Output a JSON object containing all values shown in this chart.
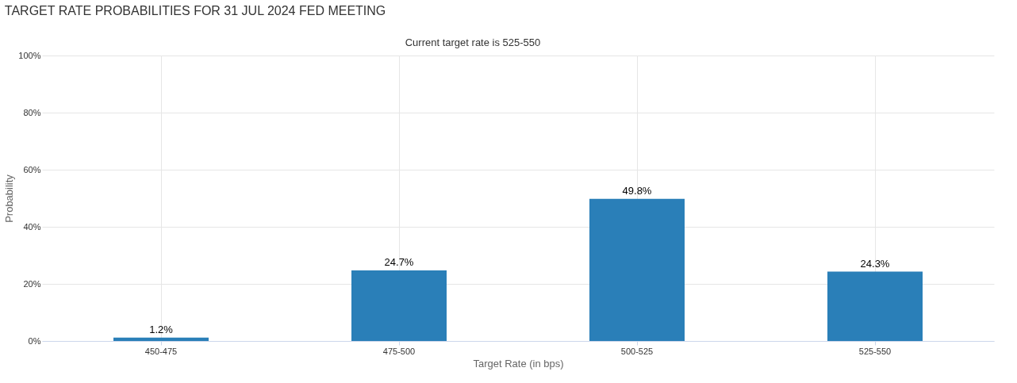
{
  "chart_data": {
    "type": "bar",
    "title": "TARGET RATE PROBABILITIES FOR 31 JUL 2024 FED MEETING",
    "subtitle": "Current target rate is 525-550",
    "xlabel": "Target Rate (in bps)",
    "ylabel": "Probability",
    "categories": [
      "450-475",
      "475-500",
      "500-525",
      "525-550"
    ],
    "values": [
      1.2,
      24.7,
      49.8,
      24.3
    ],
    "value_labels": [
      "1.2%",
      "24.7%",
      "49.8%",
      "24.3%"
    ],
    "color": "#2a7fb8",
    "ylim": [
      0,
      100
    ],
    "yticks": [
      {
        "value": 0,
        "label": "0%"
      },
      {
        "value": 20,
        "label": "20%"
      },
      {
        "value": 40,
        "label": "40%"
      },
      {
        "value": 60,
        "label": "60%"
      },
      {
        "value": 80,
        "label": "80%"
      },
      {
        "value": 100,
        "label": "100%"
      }
    ],
    "grid": true
  }
}
